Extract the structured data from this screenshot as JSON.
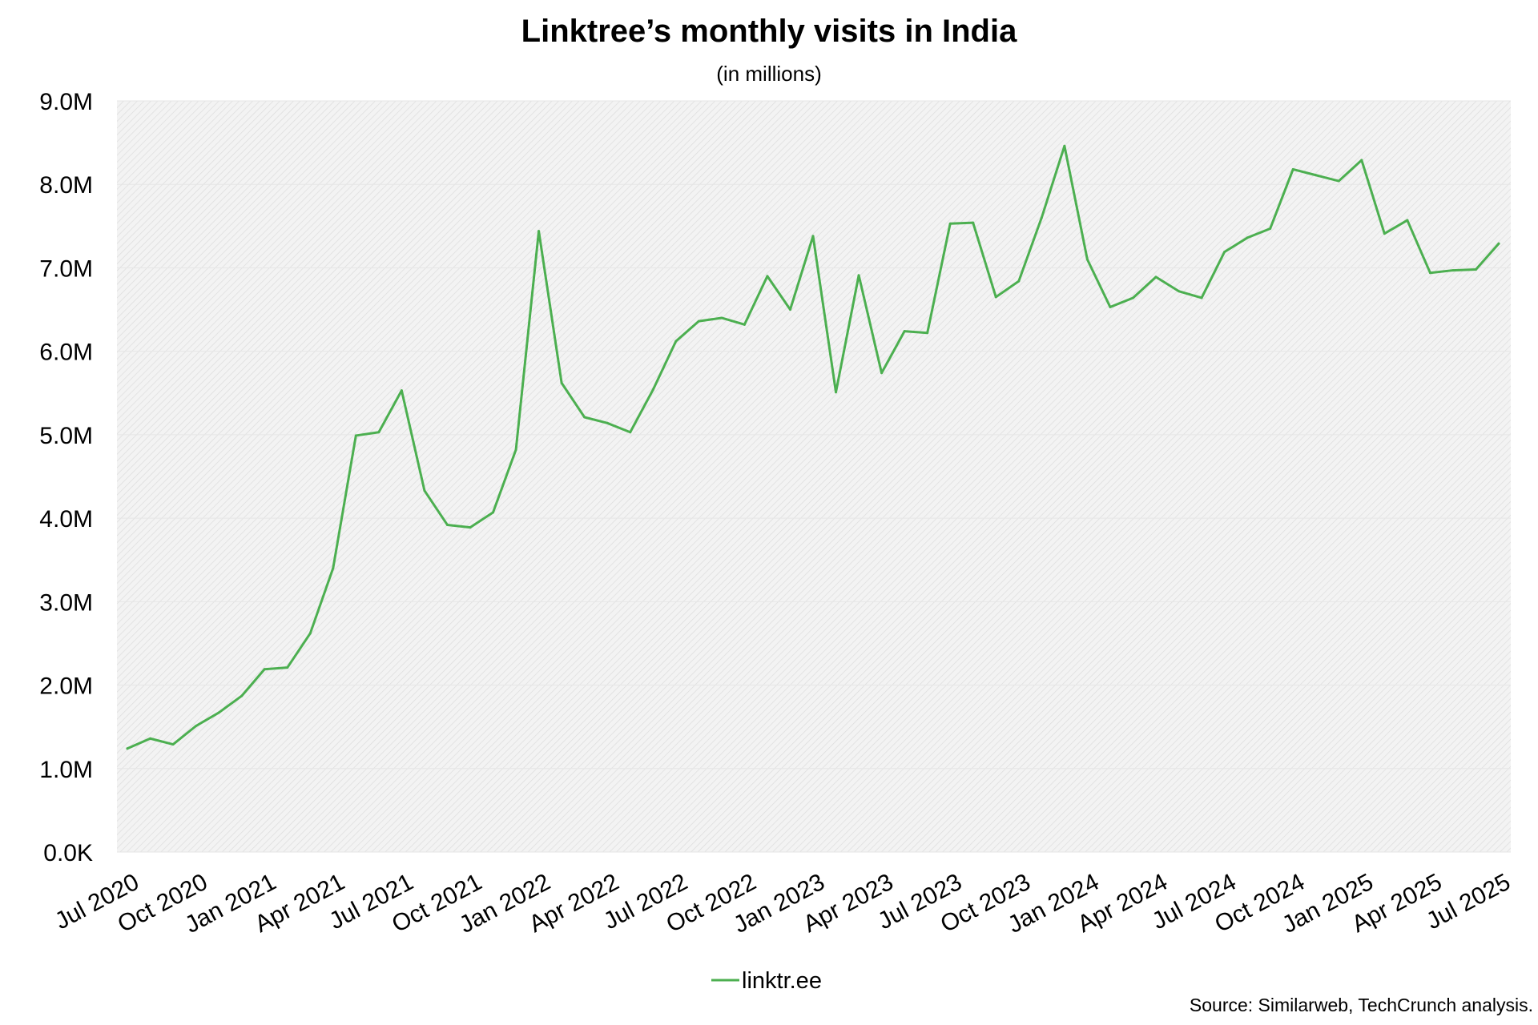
{
  "colors": {
    "series": "#4caf50",
    "plot_background": "#f3f3f3",
    "hatch": "#dcdcdc",
    "gridline": "#e6e6e6"
  },
  "chart_data": {
    "type": "line",
    "title": "Linktree’s monthly visits in India",
    "subtitle": "(in millions)",
    "xlabel": "",
    "ylabel": "",
    "ylim": [
      0,
      9
    ],
    "y_ticks": [
      0,
      1,
      2,
      3,
      4,
      5,
      6,
      7,
      8,
      9
    ],
    "y_tick_labels": [
      "0.0K",
      "1.0M",
      "2.0M",
      "3.0M",
      "4.0M",
      "5.0M",
      "6.0M",
      "7.0M",
      "8.0M",
      "9.0M"
    ],
    "x_tick_labels": [
      "Jul 2020",
      "Oct 2020",
      "Jan 2021",
      "Apr 2021",
      "Jul 2021",
      "Oct 2021",
      "Jan 2022",
      "Apr 2022",
      "Jul 2022",
      "Oct 2022",
      "Jan 2023",
      "Apr 2023",
      "Jul 2023",
      "Oct 2023",
      "Jan 2024",
      "Apr 2024",
      "Jul 2024",
      "Oct 2024",
      "Jan 2025",
      "Apr 2025",
      "Jul 2025"
    ],
    "x_tick_every": 3,
    "grid": true,
    "legend_position": "bottom-center",
    "x": [
      "Jul 2020",
      "Aug 2020",
      "Sep 2020",
      "Oct 2020",
      "Nov 2020",
      "Dec 2020",
      "Jan 2021",
      "Feb 2021",
      "Mar 2021",
      "Apr 2021",
      "May 2021",
      "Jun 2021",
      "Jul 2021",
      "Aug 2021",
      "Sep 2021",
      "Oct 2021",
      "Nov 2021",
      "Dec 2021",
      "Jan 2022",
      "Feb 2022",
      "Mar 2022",
      "Apr 2022",
      "May 2022",
      "Jun 2022",
      "Jul 2022",
      "Aug 2022",
      "Sep 2022",
      "Oct 2022",
      "Nov 2022",
      "Dec 2022",
      "Jan 2023",
      "Feb 2023",
      "Mar 2023",
      "Apr 2023",
      "May 2023",
      "Jun 2023",
      "Jul 2023",
      "Aug 2023",
      "Sep 2023",
      "Oct 2023",
      "Nov 2023",
      "Dec 2023",
      "Jan 2024",
      "Feb 2024",
      "Mar 2024",
      "Apr 2024",
      "May 2024",
      "Jun 2024",
      "Jul 2024",
      "Aug 2024",
      "Sep 2024",
      "Oct 2024",
      "Nov 2024",
      "Dec 2024",
      "Jan 2025",
      "Feb 2025",
      "Mar 2025",
      "Apr 2025",
      "May 2025",
      "Jun 2025",
      "Jul 2025"
    ],
    "series": [
      {
        "name": "linktr.ee",
        "values": [
          1.24,
          1.36,
          1.29,
          1.51,
          1.67,
          1.87,
          2.19,
          2.21,
          2.62,
          3.4,
          4.99,
          5.03,
          5.53,
          4.33,
          3.92,
          3.89,
          4.07,
          4.82,
          7.44,
          5.62,
          5.21,
          5.14,
          5.03,
          5.54,
          6.12,
          6.36,
          6.4,
          6.32,
          6.9,
          6.5,
          7.38,
          5.51,
          6.91,
          5.74,
          6.24,
          6.22,
          7.53,
          7.54,
          6.65,
          6.84,
          7.6,
          8.46,
          7.1,
          6.53,
          6.64,
          6.89,
          6.72,
          6.64,
          7.19,
          7.36,
          7.47,
          8.18,
          8.11,
          8.04,
          8.29,
          7.41,
          7.57,
          6.94,
          6.97,
          6.98,
          7.29
        ]
      }
    ]
  },
  "legend": {
    "label": "linktr.ee"
  },
  "source": "Source: Similarweb, TechCrunch analysis."
}
